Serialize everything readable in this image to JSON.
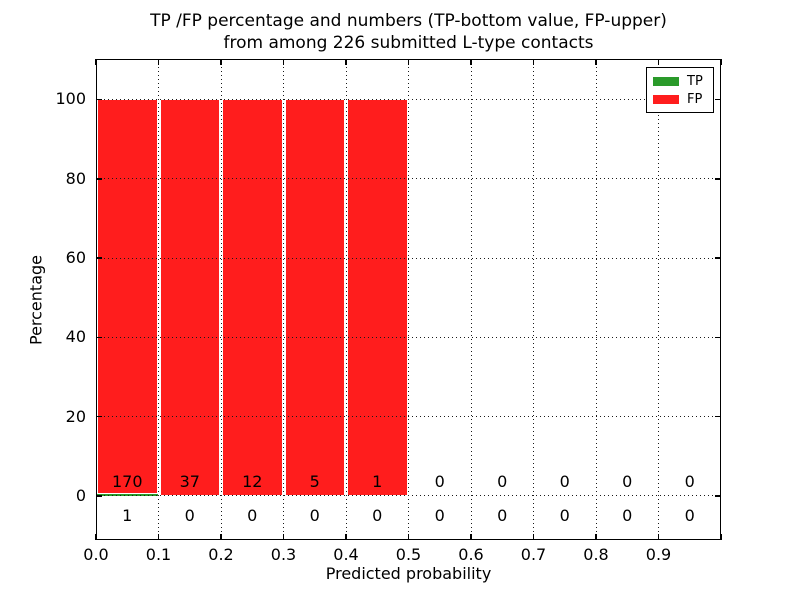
{
  "chart_data": {
    "type": "bar",
    "stacked": true,
    "title_line1": "TP /FP percentage and numbers (TP-bottom value, FP-upper)",
    "title_line2": "from among 226 submitted L-type contacts",
    "xlabel": "Predicted probability",
    "ylabel": "Percentage",
    "bin_width": 0.1,
    "bin_starts": [
      0.0,
      0.1,
      0.2,
      0.3,
      0.4,
      0.5,
      0.6,
      0.7,
      0.8,
      0.9
    ],
    "series": [
      {
        "name": "TP",
        "color": "#2a9a2a",
        "counts": [
          1,
          0,
          0,
          0,
          0,
          0,
          0,
          0,
          0,
          0
        ],
        "percentages": [
          0.585,
          0,
          0,
          0,
          0,
          0,
          0,
          0,
          0,
          0
        ]
      },
      {
        "name": "FP",
        "color": "#ff1d1d",
        "counts": [
          170,
          37,
          12,
          5,
          1,
          0,
          0,
          0,
          0,
          0
        ],
        "percentages": [
          99.415,
          100,
          100,
          100,
          100,
          0,
          0,
          0,
          0,
          0
        ]
      }
    ],
    "annotation_note": "FP counts shown just above zero line, TP counts just below zero line, centered on each bin",
    "x_tick_labels": [
      "0.0",
      "0.1",
      "0.2",
      "0.3",
      "0.4",
      "0.5",
      "0.6",
      "0.7",
      "0.8",
      "0.9"
    ],
    "y_tick_values": [
      0,
      20,
      40,
      60,
      80,
      100
    ],
    "y_tick_labels": [
      "0",
      "20",
      "40",
      "60",
      "80",
      "100"
    ],
    "xlim": [
      0.0,
      1.0
    ],
    "ylim": [
      -11.1,
      110.2
    ],
    "grid": "dotted",
    "legend_position": "upper right",
    "legend_entries": [
      "TP",
      "FP"
    ]
  }
}
